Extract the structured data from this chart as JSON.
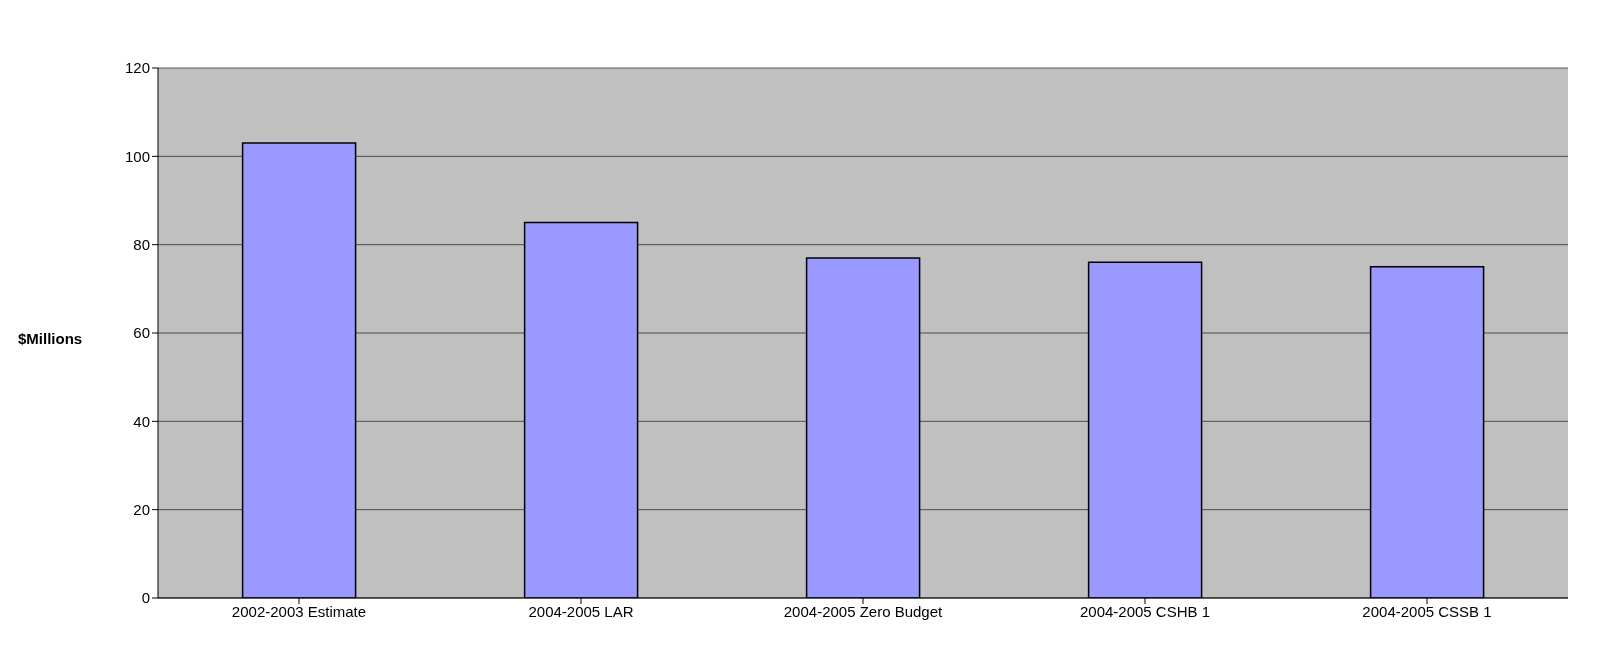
{
  "chart_data": {
    "type": "bar",
    "ylabel": "$Millions",
    "categories": [
      "2002-2003 Estimate",
      "2004-2005 LAR",
      "2004-2005 Zero Budget",
      "2004-2005 CSHB 1",
      "2004-2005 CSSB 1"
    ],
    "values": [
      103,
      85,
      77,
      76,
      75
    ],
    "color": "#9999ff",
    "ylim": [
      0,
      120
    ],
    "yticks": [
      0,
      20,
      40,
      60,
      80,
      100,
      120
    ],
    "grid": "y"
  }
}
